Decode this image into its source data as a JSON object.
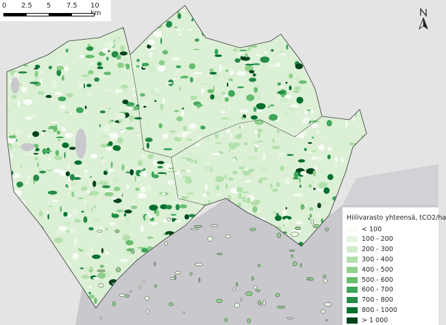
{
  "scalebar": {
    "ticks": [
      "0",
      "2.5",
      "5",
      "7.5",
      "10 km"
    ]
  },
  "north_arrow": {
    "icon": "north-arrow-icon",
    "label": ""
  },
  "legend": {
    "title": "Hiilivarasto yhteensä, tCO2/ha",
    "classes": [
      {
        "label": "< 100",
        "color": "#f7fcf5"
      },
      {
        "label": "100 - 200",
        "color": "#e5f5e0"
      },
      {
        "label": "200 - 300",
        "color": "#d0edca"
      },
      {
        "label": "300 - 400",
        "color": "#b2e0ab"
      },
      {
        "label": "400 - 500",
        "color": "#8ed08b"
      },
      {
        "label": "500 - 600",
        "color": "#66bd6f"
      },
      {
        "label": "600 - 700",
        "color": "#3da65a"
      },
      {
        "label": "700 - 800",
        "color": "#238b45"
      },
      {
        "label": "800 - 1000",
        "color": "#03702e"
      },
      {
        "label": "> 1 000",
        "color": "#00441b"
      }
    ]
  },
  "colors": {
    "background_land": "#e4e4e4",
    "sea": "#c9c8cd",
    "boundary": "#333333"
  }
}
